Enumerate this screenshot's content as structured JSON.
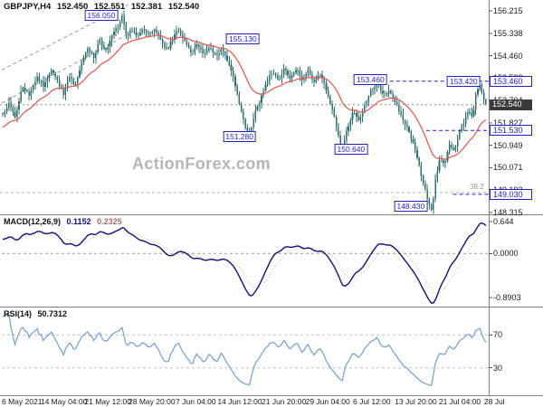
{
  "header": {
    "symbol": "GBPJPY,H4",
    "open": "152.450",
    "high": "152.551",
    "low": "152.381",
    "close": "152.540"
  },
  "watermark": "ActionForex.com",
  "indicators": {
    "macd_label": "MACD(12,26,9)",
    "macd_value1": "0.1152",
    "macd_value2": "0.2325",
    "rsi_label": "RSI(14)",
    "rsi_value": "50.7312"
  },
  "colors": {
    "bar": "#2e6f6f",
    "ma": "#e8524a",
    "level": "#2222cc",
    "current_bg": "#3a3a3a",
    "macd": "#10107e",
    "macd_signal": "#c9a9a4",
    "rsi": "#6f9ed6",
    "separator": "#7f7f7f",
    "dashed": "#9a9a9a",
    "axis_text": "#1a1a1a",
    "watermark": "#b5b5b5"
  },
  "chart_data": {
    "type": "candlestick",
    "symbol": "GBPJPY",
    "timeframe": "H4",
    "title": "GBPJPY,H4 152.450 152.551 152.381 152.540",
    "current_price": 152.54,
    "bars": 240,
    "y_axis": {
      "min": 148.315,
      "max": 156.215,
      "labels": [
        {
          "text": "156.215",
          "value": 156.215
        },
        {
          "text": "155.338",
          "value": 155.337
        },
        {
          "text": "154.460",
          "value": 154.459
        },
        {
          "text": "153.582",
          "value": 153.582
        },
        {
          "text": "152.704",
          "value": 152.704
        },
        {
          "text": "151.827",
          "value": 151.826
        },
        {
          "text": "150.949",
          "value": 150.949
        },
        {
          "text": "150.071",
          "value": 150.071
        },
        {
          "text": "149.193",
          "value": 149.193
        },
        {
          "text": "148.315",
          "value": 148.315
        }
      ]
    },
    "x_labels": [
      "6 May 2021",
      "14 May 04:00",
      "21 May 12:00",
      "28 May 20:00",
      "7 Jun 04:00",
      "14 Jun 12:00",
      "21 Jun 20:00",
      "29 Jun 04:00",
      "6 Jul 12:00",
      "13 Jul 20:00",
      "21 Jul 04:00",
      "28 Jul 12:00"
    ],
    "price_path": [
      [
        0,
        152.15
      ],
      [
        0.012,
        152.6
      ],
      [
        0.025,
        152.05
      ],
      [
        0.04,
        153.25
      ],
      [
        0.055,
        152.9
      ],
      [
        0.07,
        153.65
      ],
      [
        0.085,
        153.25
      ],
      [
        0.1,
        153.95
      ],
      [
        0.113,
        153.5
      ],
      [
        0.125,
        152.95
      ],
      [
        0.138,
        153.6
      ],
      [
        0.15,
        153.3
      ],
      [
        0.163,
        154.2
      ],
      [
        0.175,
        154.75
      ],
      [
        0.188,
        154.4
      ],
      [
        0.2,
        155.05
      ],
      [
        0.213,
        154.65
      ],
      [
        0.225,
        155.2
      ],
      [
        0.238,
        155.6
      ],
      [
        0.248,
        156.05
      ],
      [
        0.256,
        155.2
      ],
      [
        0.266,
        155.5
      ],
      [
        0.278,
        155.15
      ],
      [
        0.29,
        155.5
      ],
      [
        0.303,
        155.25
      ],
      [
        0.315,
        155.55
      ],
      [
        0.328,
        155.0
      ],
      [
        0.34,
        154.7
      ],
      [
        0.353,
        155.2
      ],
      [
        0.365,
        155.45
      ],
      [
        0.378,
        155.0
      ],
      [
        0.39,
        154.55
      ],
      [
        0.403,
        154.9
      ],
      [
        0.415,
        154.5
      ],
      [
        0.428,
        154.85
      ],
      [
        0.44,
        154.45
      ],
      [
        0.453,
        154.75
      ],
      [
        0.465,
        154.25
      ],
      [
        0.478,
        153.55
      ],
      [
        0.49,
        152.6
      ],
      [
        0.5,
        151.75
      ],
      [
        0.51,
        151.28
      ],
      [
        0.52,
        152.15
      ],
      [
        0.533,
        152.7
      ],
      [
        0.545,
        153.35
      ],
      [
        0.558,
        153.85
      ],
      [
        0.57,
        153.5
      ],
      [
        0.583,
        154.0
      ],
      [
        0.595,
        153.55
      ],
      [
        0.608,
        153.95
      ],
      [
        0.62,
        153.5
      ],
      [
        0.633,
        153.9
      ],
      [
        0.645,
        153.4
      ],
      [
        0.658,
        153.75
      ],
      [
        0.668,
        153.2
      ],
      [
        0.68,
        152.5
      ],
      [
        0.692,
        151.55
      ],
      [
        0.702,
        150.64
      ],
      [
        0.712,
        151.55
      ],
      [
        0.725,
        152.25
      ],
      [
        0.738,
        151.9
      ],
      [
        0.75,
        152.55
      ],
      [
        0.763,
        153.1
      ],
      [
        0.775,
        153.46
      ],
      [
        0.788,
        152.9
      ],
      [
        0.8,
        153.1
      ],
      [
        0.813,
        152.65
      ],
      [
        0.825,
        152.1
      ],
      [
        0.838,
        151.55
      ],
      [
        0.85,
        151.0
      ],
      [
        0.86,
        150.25
      ],
      [
        0.87,
        149.5
      ],
      [
        0.88,
        148.8
      ],
      [
        0.888,
        148.43
      ],
      [
        0.896,
        149.65
      ],
      [
        0.905,
        150.5
      ],
      [
        0.915,
        150.15
      ],
      [
        0.925,
        151.05
      ],
      [
        0.935,
        150.7
      ],
      [
        0.945,
        151.45
      ],
      [
        0.955,
        151.9
      ],
      [
        0.965,
        152.35
      ],
      [
        0.972,
        152.05
      ],
      [
        0.98,
        153.0
      ],
      [
        0.987,
        153.38
      ],
      [
        0.993,
        152.85
      ],
      [
        1,
        152.54
      ]
    ],
    "moving_average": {
      "period": 24
    },
    "annotations": [
      {
        "text": "156.050",
        "x": 0.205,
        "price": 156.05
      },
      {
        "text": "155.130",
        "x": 0.497,
        "price": 155.13
      },
      {
        "text": "151.280",
        "x": 0.49,
        "price": 151.28
      },
      {
        "text": "153.460",
        "x": 0.76,
        "price": 153.52
      },
      {
        "text": "150.640",
        "x": 0.72,
        "price": 150.8
      },
      {
        "text": "153.420",
        "x": 0.952,
        "price": 153.46
      },
      {
        "text": "148.430",
        "x": 0.843,
        "price": 148.55
      }
    ],
    "axis_markers": [
      {
        "text": "153.460",
        "price": 153.46,
        "style": "level"
      },
      {
        "text": "152.540",
        "price": 152.54,
        "style": "current"
      },
      {
        "text": "151.530",
        "price": 151.53,
        "style": "level"
      },
      {
        "text": "149.030",
        "price": 149.03,
        "style": "level"
      }
    ],
    "level_lines": [
      {
        "price": 153.46,
        "from": 0.8
      },
      {
        "price": 151.53,
        "from": 0.875
      },
      {
        "price": 149.03,
        "from": 0.93
      }
    ],
    "fib_line": {
      "price": 149.1,
      "label": "38.2"
    },
    "trendlines": [
      [
        0,
        153.9,
        0.26,
        156.45
      ],
      [
        0,
        152.6,
        0.26,
        155.3
      ]
    ],
    "macd": {
      "fast": 12,
      "slow": 26,
      "signal": 9,
      "range": [
        -1.0,
        0.7
      ],
      "axis": [
        {
          "text": "0.644",
          "value": 0.644
        },
        {
          "text": "0.0000",
          "value": 0
        },
        {
          "text": "-0.8903",
          "value": -0.8903
        }
      ]
    },
    "rsi": {
      "period": 14,
      "levels": [
        {
          "text": "70",
          "value": 70
        },
        {
          "text": "30",
          "value": 30
        }
      ]
    }
  }
}
